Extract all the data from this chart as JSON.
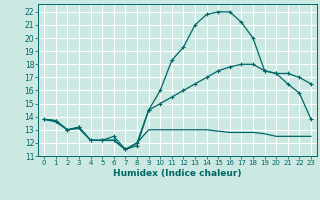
{
  "title": "",
  "xlabel": "Humidex (Indice chaleur)",
  "background_color": "#cbe8e3",
  "grid_color": "#ffffff",
  "line_color": "#006666",
  "xlim": [
    -0.5,
    23.5
  ],
  "ylim": [
    11,
    22.6
  ],
  "xticks": [
    0,
    1,
    2,
    3,
    4,
    5,
    6,
    7,
    8,
    9,
    10,
    11,
    12,
    13,
    14,
    15,
    16,
    17,
    18,
    19,
    20,
    21,
    22,
    23
  ],
  "yticks": [
    11,
    12,
    13,
    14,
    15,
    16,
    17,
    18,
    19,
    20,
    21,
    22
  ],
  "line1_y": [
    13.8,
    13.7,
    13.0,
    13.2,
    12.2,
    12.2,
    12.5,
    11.5,
    11.8,
    14.5,
    15.0,
    15.5,
    16.0,
    16.5,
    17.0,
    17.5,
    17.8,
    18.0,
    18.0,
    17.5,
    17.3,
    17.3,
    17.0,
    16.5
  ],
  "line2_y": [
    13.8,
    13.7,
    13.0,
    13.2,
    12.2,
    12.2,
    12.2,
    11.5,
    12.0,
    14.5,
    16.0,
    18.3,
    19.3,
    21.0,
    21.8,
    22.0,
    22.0,
    21.2,
    20.0,
    17.5,
    17.3,
    16.5,
    15.8,
    13.8
  ],
  "line3_y": [
    13.8,
    13.6,
    13.0,
    13.1,
    12.2,
    12.2,
    12.2,
    11.5,
    12.0,
    13.0,
    13.0,
    13.0,
    13.0,
    13.0,
    13.0,
    12.9,
    12.8,
    12.8,
    12.8,
    12.7,
    12.5,
    12.5,
    12.5,
    12.5
  ]
}
